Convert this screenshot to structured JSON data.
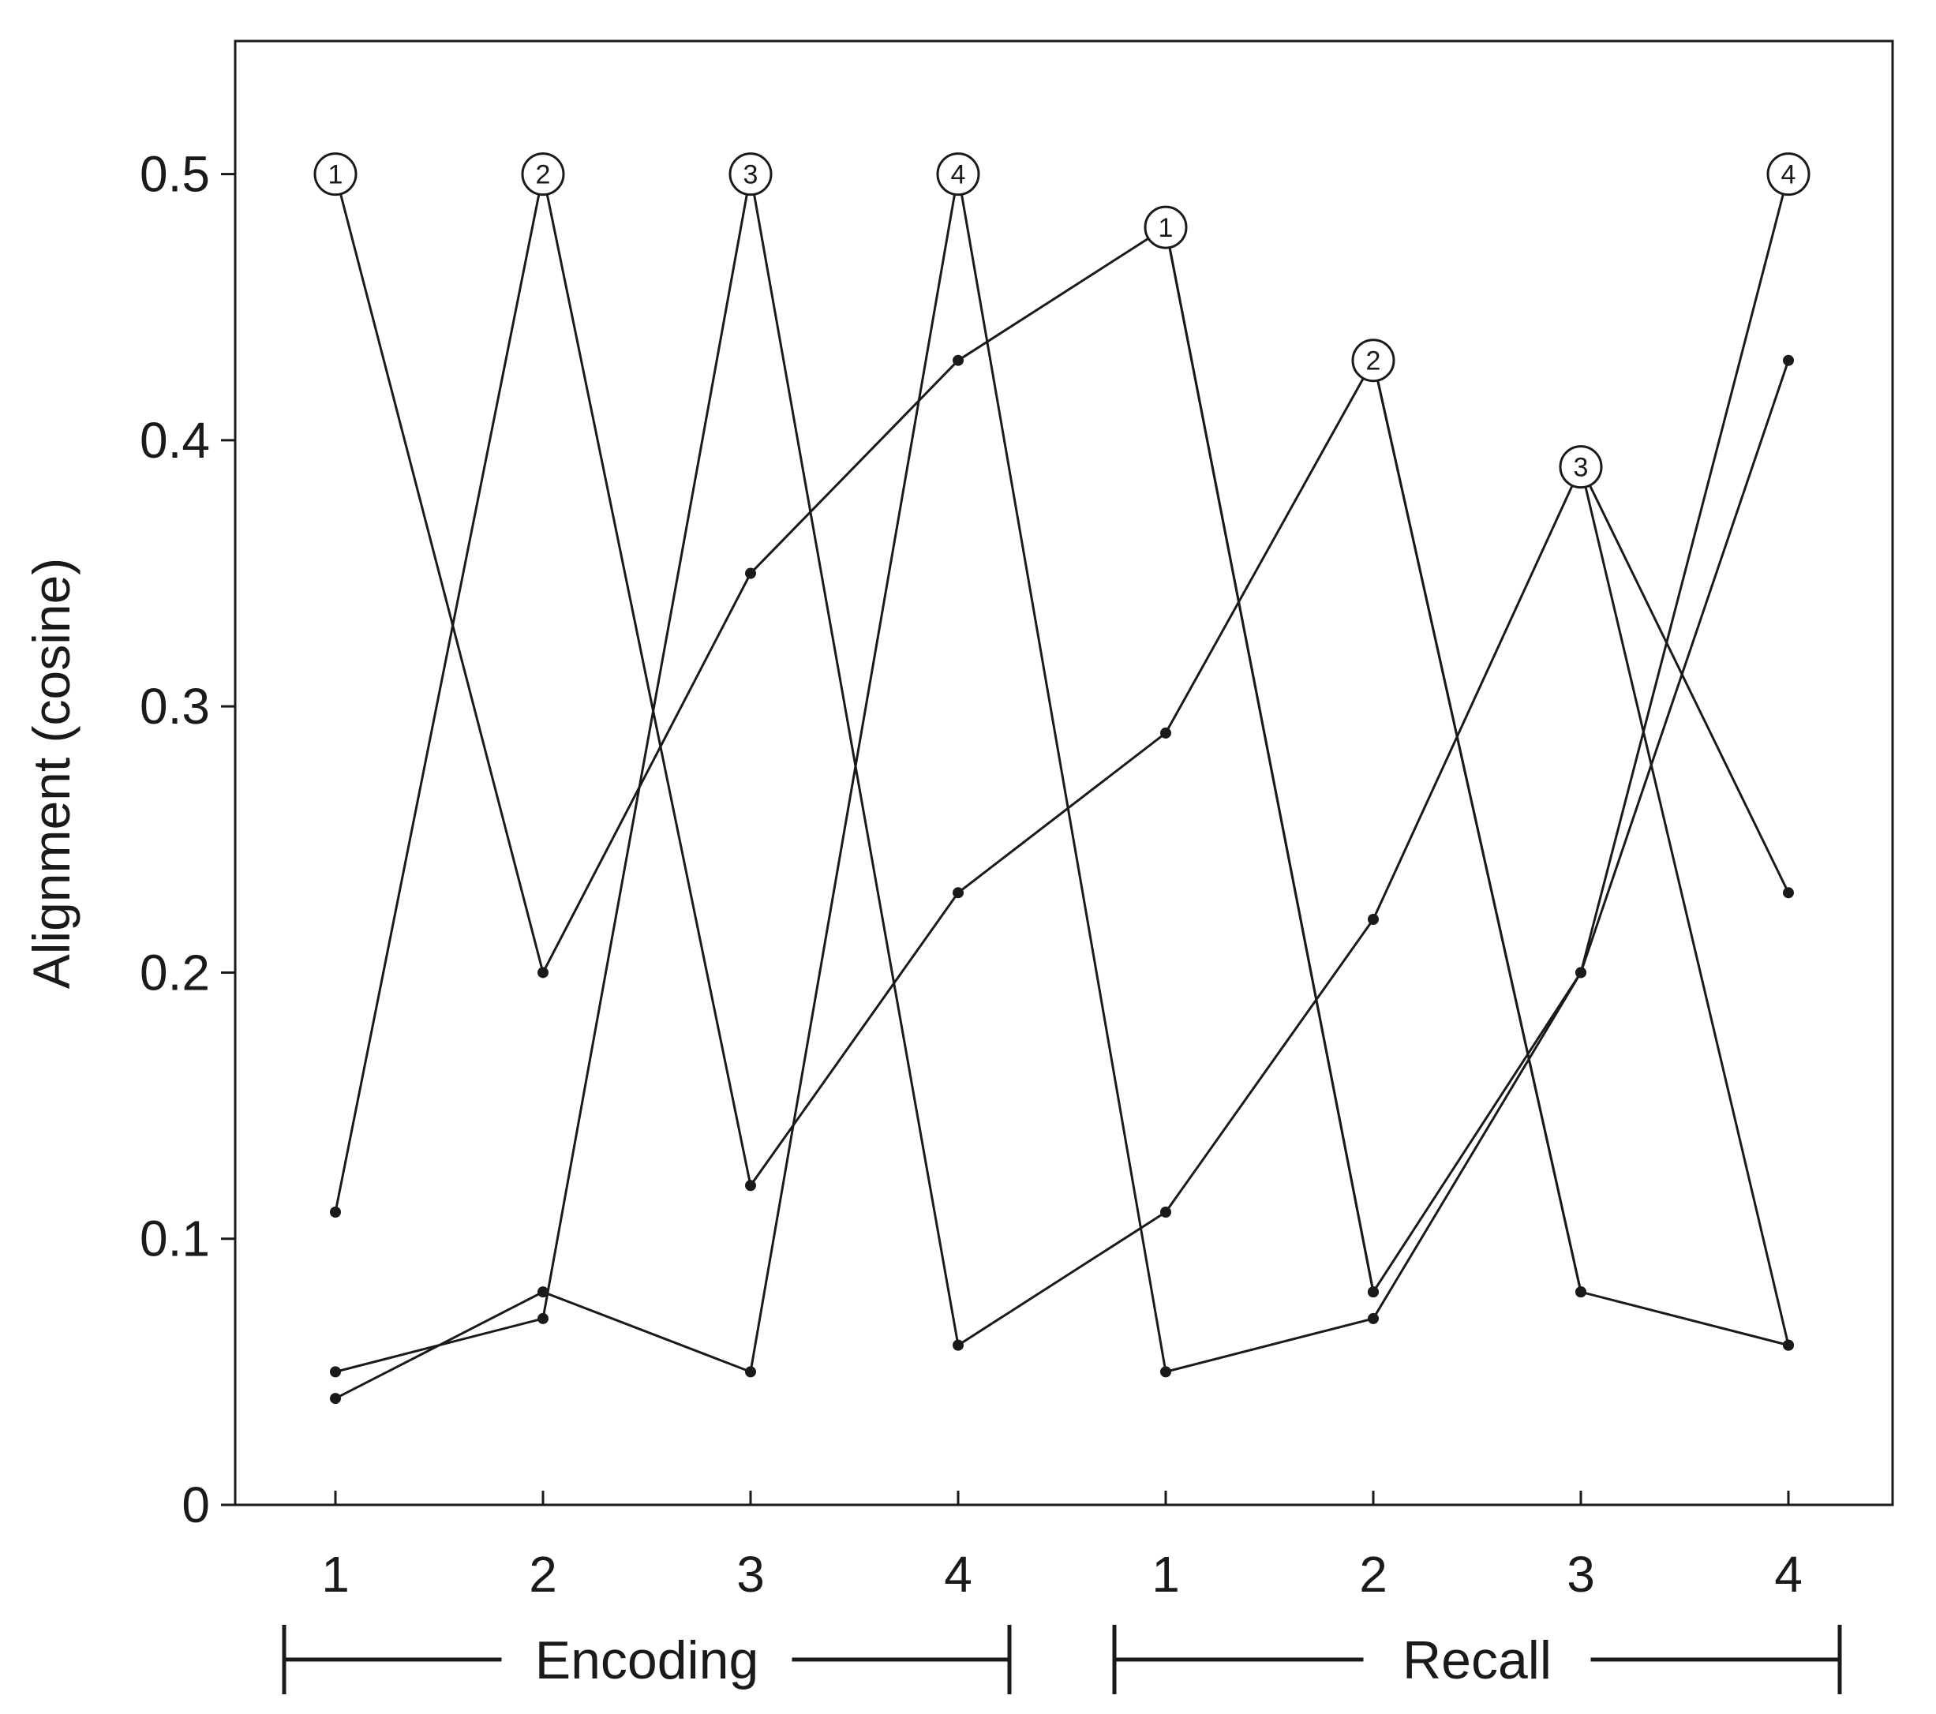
{
  "chart_data": {
    "type": "line",
    "title": "",
    "xlabel": "",
    "ylabel": "Alignment (cosine)",
    "ylim": [
      0,
      0.55
    ],
    "yticks": [
      "0",
      "0.1",
      "0.2",
      "0.3",
      "0.4",
      "0.5"
    ],
    "categories": [
      "1",
      "2",
      "3",
      "4",
      "1",
      "2",
      "3",
      "4"
    ],
    "groups": [
      {
        "label": "Encoding",
        "from": 0,
        "to": 3
      },
      {
        "label": "Recall",
        "from": 4,
        "to": 7
      }
    ],
    "grid": false,
    "legend": "none",
    "series": [
      {
        "marker": "1",
        "marker_index": 0,
        "values": [
          0.5,
          0.2,
          0.35,
          0.43,
          0.48,
          0.08,
          0.2,
          0.43
        ]
      },
      {
        "marker": "2",
        "marker_index": 1,
        "values": [
          0.11,
          0.5,
          0.12,
          0.23,
          0.29,
          0.43,
          0.08,
          0.06
        ]
      },
      {
        "marker": "3",
        "marker_index": 2,
        "values": [
          0.05,
          0.07,
          0.5,
          0.06,
          0.11,
          0.22,
          0.39,
          0.23
        ]
      },
      {
        "marker": "4",
        "marker_index": 3,
        "values": [
          0.04,
          0.08,
          0.05,
          0.5,
          0.05,
          0.07,
          0.2,
          0.5
        ]
      },
      {
        "marker": "1",
        "marker_index": 4,
        "values": [
          null,
          null,
          null,
          null,
          0.48,
          0.08,
          null,
          null
        ]
      },
      {
        "marker": "2",
        "marker_index": 5,
        "values": [
          null,
          null,
          null,
          null,
          null,
          0.43,
          0.08,
          null
        ]
      },
      {
        "marker": "3",
        "marker_index": 6,
        "values": [
          null,
          null,
          null,
          null,
          null,
          null,
          0.39,
          0.06
        ]
      },
      {
        "marker": "4",
        "marker_index": 7,
        "values": [
          null,
          null,
          null,
          null,
          null,
          null,
          null,
          0.5
        ]
      }
    ]
  }
}
